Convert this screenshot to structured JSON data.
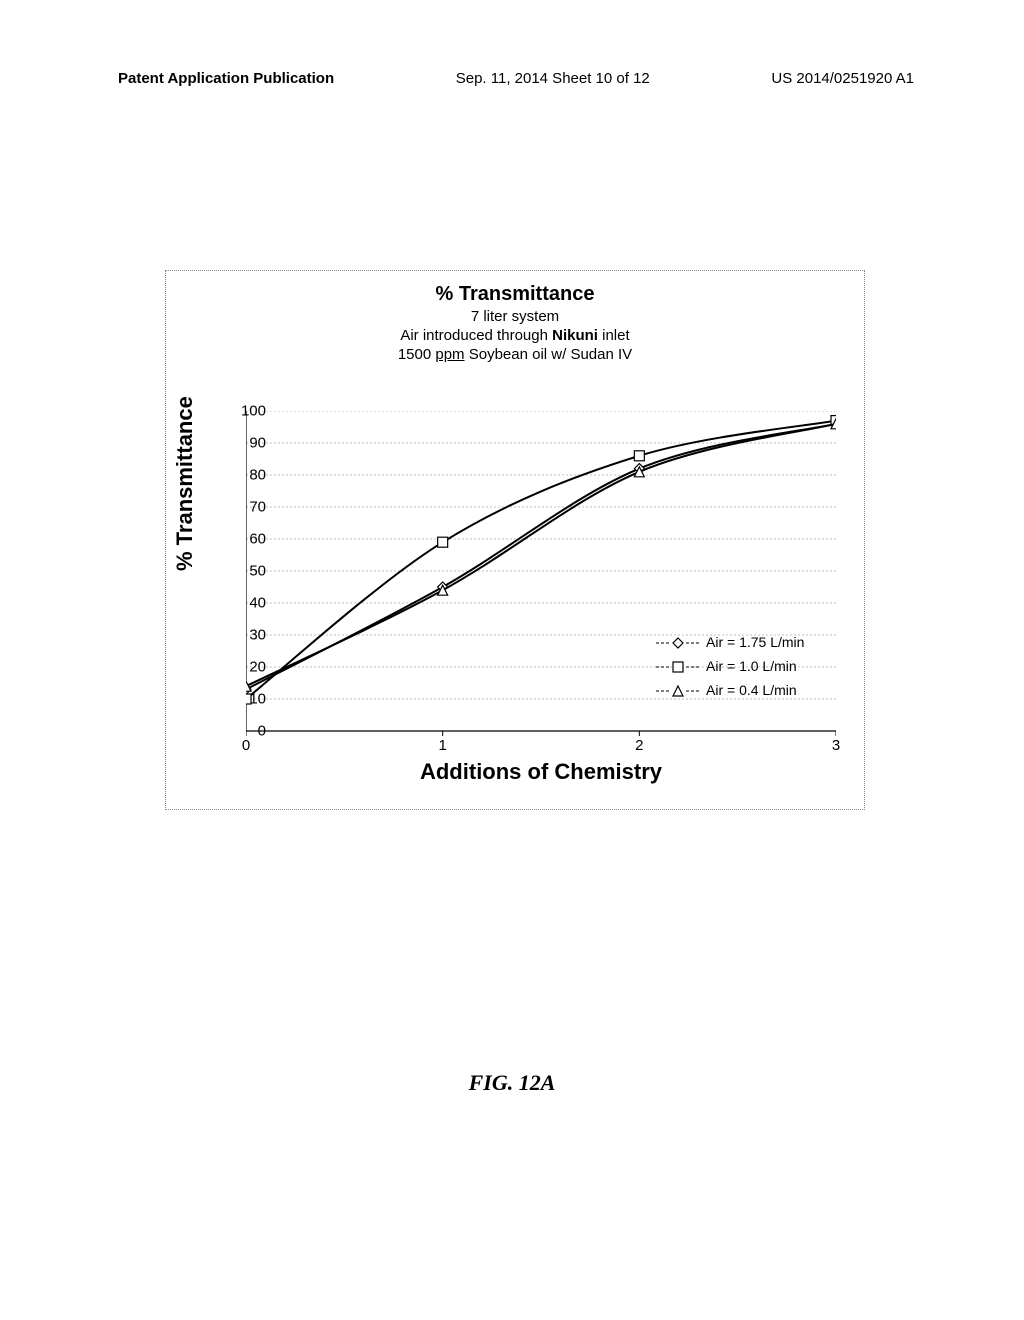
{
  "header": {
    "left": "Patent Application Publication",
    "center": "Sep. 11, 2014  Sheet 10 of 12",
    "right": "US 2014/0251920 A1"
  },
  "chart": {
    "type": "line",
    "title": "% Transmittance",
    "subtitle_lines": [
      "7 liter system",
      "Air introduced through Nikuni inlet",
      "1500 ppm Soybean oil w/ Sudan IV"
    ],
    "ylabel": "% Transmittance",
    "xlabel": "Additions of Chemistry",
    "xlim": [
      0,
      3
    ],
    "ylim": [
      0,
      100
    ],
    "xticks": [
      0,
      1,
      2,
      3
    ],
    "yticks": [
      0,
      10,
      20,
      30,
      40,
      50,
      60,
      70,
      80,
      90,
      100
    ],
    "grid_color": "#bfbfbf",
    "axis_color": "#000000",
    "background_color": "#ffffff",
    "series": [
      {
        "name": "Air = 1.75 L/min",
        "marker": "diamond",
        "color": "#000000",
        "fill": "#ffffff",
        "points": [
          [
            0,
            13
          ],
          [
            1,
            45
          ],
          [
            2,
            82
          ],
          [
            3,
            96
          ]
        ]
      },
      {
        "name": "Air = 1.0 L/min",
        "marker": "square",
        "color": "#000000",
        "fill": "#ffffff",
        "points": [
          [
            0,
            10
          ],
          [
            1,
            59
          ],
          [
            2,
            86
          ],
          [
            3,
            97
          ]
        ]
      },
      {
        "name": "Air = 0.4 L/min",
        "marker": "triangle",
        "color": "#000000",
        "fill": "#ffffff",
        "points": [
          [
            0,
            14
          ],
          [
            1,
            44
          ],
          [
            2,
            81
          ],
          [
            3,
            96
          ]
        ]
      }
    ],
    "line_width": 2,
    "marker_size": 10,
    "tick_fontsize": 15,
    "label_fontsize": 22,
    "title_fontsize": 20
  },
  "figure_label": "FIG. 12A"
}
